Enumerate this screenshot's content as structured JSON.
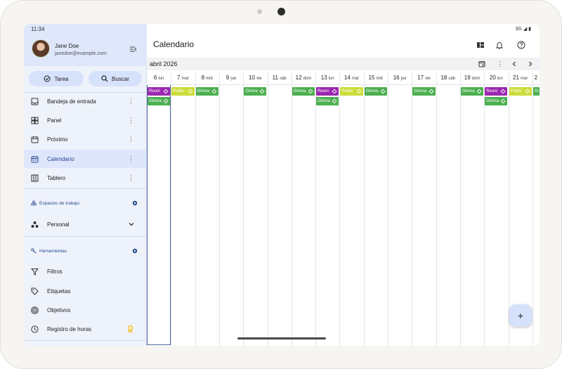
{
  "status": {
    "time": "11:34",
    "network": "3G"
  },
  "user": {
    "name": "Jane Doe",
    "email": "janedoe@example.com"
  },
  "actions": {
    "task_label": "Tarea",
    "search_label": "Buscar"
  },
  "nav": [
    {
      "label": "Bandeja de entrada",
      "icon": "inbox-icon"
    },
    {
      "label": "Panel",
      "icon": "dashboard-icon"
    },
    {
      "label": "Próximo",
      "icon": "upcoming-icon"
    },
    {
      "label": "Calendario",
      "icon": "calendar-icon",
      "active": true
    },
    {
      "label": "Tablero",
      "icon": "board-icon"
    }
  ],
  "workspaces": {
    "title": "Espacios de trabajo",
    "items": [
      {
        "label": "Personal"
      }
    ]
  },
  "tools": {
    "title": "Herramientas",
    "items": [
      {
        "label": "Filtros",
        "icon": "filter-icon"
      },
      {
        "label": "Etiquetas",
        "icon": "label-icon"
      },
      {
        "label": "Objetivos",
        "icon": "target-icon"
      },
      {
        "label": "Registro de horas",
        "icon": "clock-icon"
      }
    ]
  },
  "main": {
    "title": "Calendario",
    "month": "abril 2026"
  },
  "days": [
    {
      "num": "6",
      "dow": "lun"
    },
    {
      "num": "7",
      "dow": "mar"
    },
    {
      "num": "8",
      "dow": "mié"
    },
    {
      "num": "9",
      "dow": "jue"
    },
    {
      "num": "10",
      "dow": "vie"
    },
    {
      "num": "11",
      "dow": "sáb"
    },
    {
      "num": "12",
      "dow": "dom"
    },
    {
      "num": "13",
      "dow": "lun"
    },
    {
      "num": "14",
      "dow": "mar"
    },
    {
      "num": "15",
      "dow": "mié"
    },
    {
      "num": "16",
      "dow": "jue"
    },
    {
      "num": "17",
      "dow": "vie"
    },
    {
      "num": "18",
      "dow": "sáb"
    },
    {
      "num": "19",
      "dow": "dom"
    },
    {
      "num": "20",
      "dow": "lun"
    },
    {
      "num": "21",
      "dow": "mar"
    },
    {
      "num": "2",
      "dow": ""
    }
  ],
  "colors": {
    "reunion": "#9c27b0",
    "public": "#cddc39",
    "gimnasio": "#4caf50",
    "accent": "#2a4a8f"
  },
  "events": [
    {
      "day": 0,
      "row": 0,
      "label": "Reuni",
      "type": "reunion"
    },
    {
      "day": 0,
      "row": 1,
      "label": "Gimna",
      "type": "gimnasio"
    },
    {
      "day": 1,
      "row": 0,
      "label": "Public",
      "type": "public"
    },
    {
      "day": 2,
      "row": 0,
      "label": "Gimna",
      "type": "gimnasio"
    },
    {
      "day": 4,
      "row": 0,
      "label": "Gimna",
      "type": "gimnasio"
    },
    {
      "day": 6,
      "row": 0,
      "label": "Gimna",
      "type": "gimnasio"
    },
    {
      "day": 7,
      "row": 0,
      "label": "Reuni",
      "type": "reunion"
    },
    {
      "day": 7,
      "row": 1,
      "label": "Gimna",
      "type": "gimnasio"
    },
    {
      "day": 8,
      "row": 0,
      "label": "Public",
      "type": "public"
    },
    {
      "day": 9,
      "row": 0,
      "label": "Gimna",
      "type": "gimnasio"
    },
    {
      "day": 11,
      "row": 0,
      "label": "Gimna",
      "type": "gimnasio"
    },
    {
      "day": 13,
      "row": 0,
      "label": "Gimna",
      "type": "gimnasio"
    },
    {
      "day": 14,
      "row": 0,
      "label": "Reuni",
      "type": "reunion"
    },
    {
      "day": 14,
      "row": 1,
      "label": "Gimna",
      "type": "gimnasio"
    },
    {
      "day": 15,
      "row": 0,
      "label": "Public",
      "type": "public"
    },
    {
      "day": 16,
      "row": 0,
      "label": "Gi",
      "type": "gimnasio"
    }
  ]
}
